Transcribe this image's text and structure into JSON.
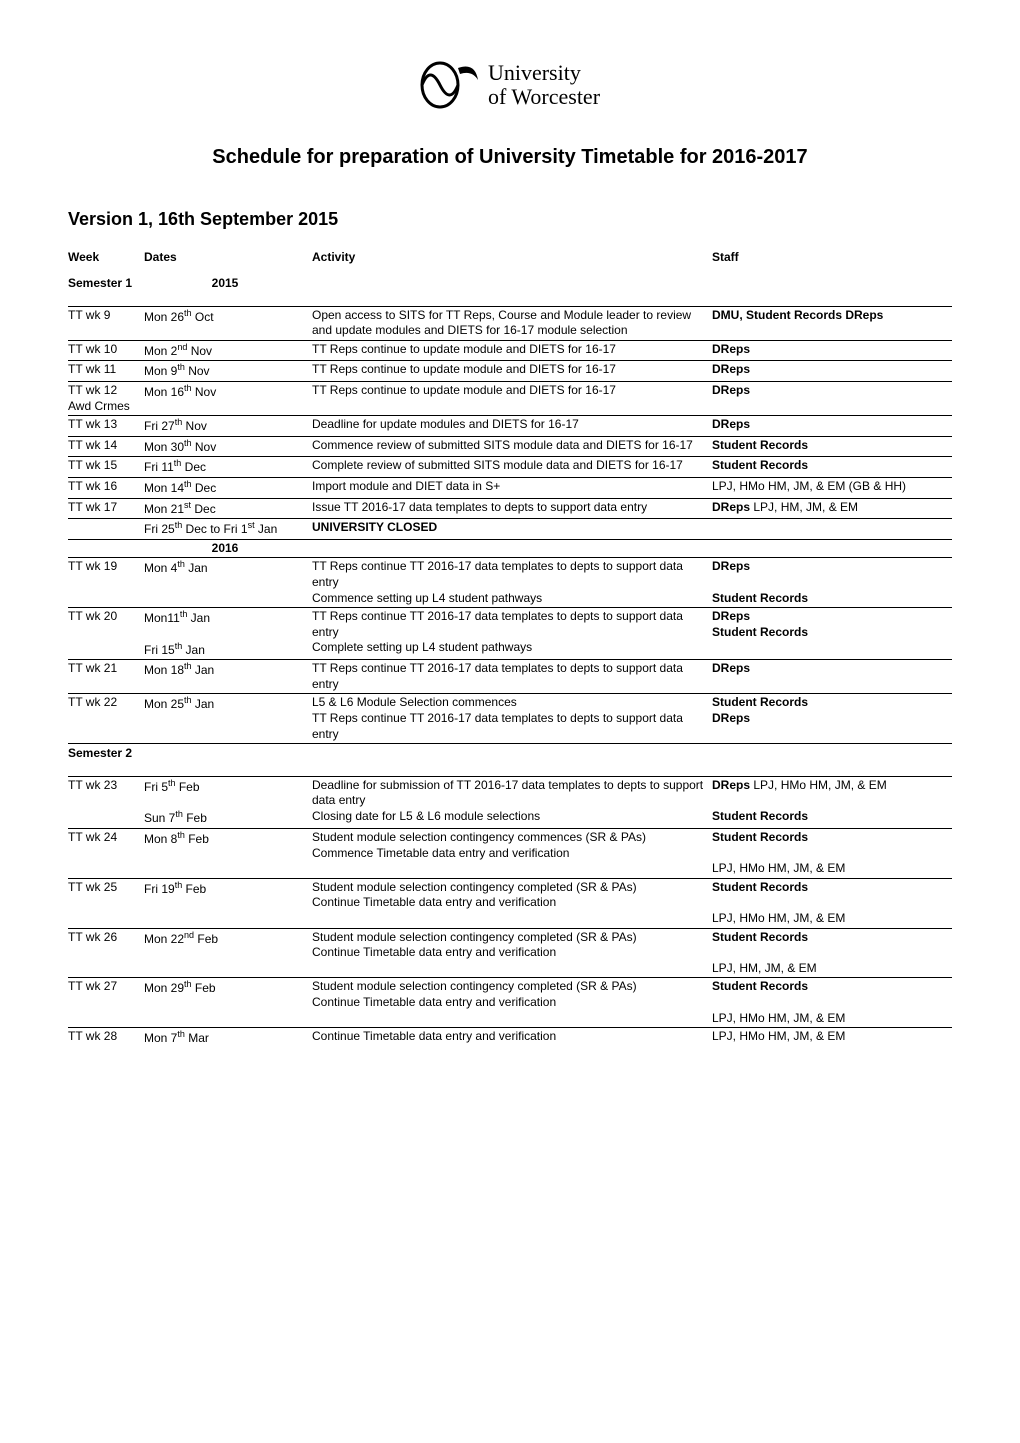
{
  "logo": {
    "line1": "University",
    "line2": "of Worcester"
  },
  "title": "Schedule for preparation of University Timetable for 2016-2017",
  "version": "Version 1, 16th September 2015",
  "headers": {
    "week": "Week",
    "dates": "Dates",
    "activity": "Activity",
    "staff": "Staff"
  },
  "sem1_label": "Semester 1",
  "sem2_label": "Semester 2",
  "year_2015": "2015",
  "year_2016": "2016",
  "closed": "UNIVERSITY CLOSED",
  "closed_dates": "Fri 25th Dec to Fri 1st Jan",
  "colors": {
    "text": "#000000",
    "background": "#ffffff",
    "rule": "#000000"
  },
  "rows": [
    {
      "week": "TT wk 9",
      "date": "Mon 26th Oct",
      "act": "Open access to SITS for TT Reps, Course and Module leader to review and  update modules and DIETS for 16-17 module selection",
      "staff_bold": "DMU, Student  Records DReps"
    },
    {
      "week": "TT wk 10",
      "date": "Mon 2nd Nov",
      "act": "TT Reps continue to update module and DIETS for 16-17",
      "staff_bold": "DReps"
    },
    {
      "week": "TT wk 11",
      "date": "Mon 9th Nov",
      "act": "TT Reps continue to update module and DIETS for 16-17",
      "staff_bold": "DReps"
    },
    {
      "week": "TT wk 12 Awd Crmes",
      "date": "Mon 16th Nov",
      "act": "TT Reps continue to update module and DIETS for 16-17",
      "staff_bold": "DReps"
    },
    {
      "week": "TT wk 13",
      "date": "Fri 27th Nov",
      "act": "Deadline for update modules and DIETS for 16-17",
      "staff_bold": "DReps"
    },
    {
      "week": "TT wk 14",
      "date": "Mon 30th Nov",
      "act": "Commence review of submitted SITS module data and DIETS for 16-17",
      "staff_bold": "Student  Records"
    },
    {
      "week": "TT wk 15",
      "date": "Fri 11th Dec",
      "act": "Complete review  of submitted SITS module data and DIETS for 16-17",
      "staff_bold": "Student  Records"
    },
    {
      "week": "TT wk 16",
      "date": "Mon 14th Dec",
      "act": "Import module  and DIET data in S+",
      "staff_plain": "LPJ, HMo HM, JM, & EM (GB & HH)"
    },
    {
      "week": "TT wk 17",
      "date": "Mon 21st Dec",
      "act": "Issue TT 2016-17 data templates to depts to support data entry",
      "staff_bold": "DReps",
      "staff_plain": " LPJ, HM, JM, & EM"
    },
    {
      "week": "TT wk 19",
      "date": "Mon 4th Jan",
      "act": "TT Reps continue TT 2016-17 data templates to depts to support data entry",
      "staff_bold": "DReps",
      "act2": "Commence setting up L4 student pathways",
      "staff2_bold": "Student  Records"
    },
    {
      "week": "TT wk 20",
      "date": "Mon11th Jan",
      "act": "TT Reps continue TT 2016-17 data templates to depts to support data entry",
      "staff_bold": "DReps",
      "date2": "Fri 15th Jan",
      "act2": "Complete setting up L4 student pathways",
      "staff2_bold": "Student  Records"
    },
    {
      "week": "TT wk 21",
      "date": "Mon 18th Jan",
      "act": "TT Reps continue TT 2016-17 data templates to depts to support data entry",
      "staff_bold": "DReps"
    },
    {
      "week": "TT wk 22",
      "date": "Mon 25th Jan",
      "act": "L5 & L6 Module Selection commences",
      "staff_bold": "Student  Records",
      "act2": "TT Reps continue TT 2016-17 data templates to depts to support data entry",
      "staff2_bold": "DReps"
    },
    {
      "week": "TT wk 23",
      "date": "Fri 5th Feb",
      "act": "Deadline for submission of TT 2016-17 data templates to depts to support data entry",
      "staff_bold": "DReps",
      "staff_plain": " LPJ, HMo HM, JM, & EM",
      "date2": "Sun 7th Feb",
      "act2": "Closing date for L5 & L6 module selections",
      "staff2_bold": "Student  Records"
    },
    {
      "week": "TT wk 24",
      "date": "Mon 8th Feb",
      "act": "Student module selection contingency commences (SR & PAs)",
      "staff_bold": "Student  Records",
      "act2": "Commence Timetable data entry and verification",
      "staff2_plain": "LPJ, HMo HM, JM, & EM"
    },
    {
      "week": "TT wk 25",
      "date": "Fri 19th Feb",
      "act": "Student module selection contingency completed (SR & PAs)",
      "staff_bold": "Student  Records",
      "act2": "Continue Timetable data entry and verification",
      "staff2_plain": "LPJ, HMo HM, JM, & EM"
    },
    {
      "week": "TT wk 26",
      "date": "Mon 22nd Feb",
      "act": "Student module selection contingency completed (SR & PAs)",
      "staff_bold": "Student  Records",
      "act2": "Continue Timetable data entry and verification",
      "staff2_plain": "LPJ, HM, JM, & EM"
    },
    {
      "week": "TT wk 27",
      "date": "Mon 29th Feb",
      "act": "Student module selection contingency completed (SR & PAs)",
      "staff_bold": "Student  Records",
      "act2": "Continue Timetable data entry and verification",
      "staff2_plain": "LPJ, HMo HM, JM, & EM"
    },
    {
      "week": "TT wk 28",
      "date": "Mon 7th Mar",
      "act": "Continue Timetable data entry and verification",
      "staff_plain": "LPJ, HMo HM, JM, & EM"
    }
  ]
}
